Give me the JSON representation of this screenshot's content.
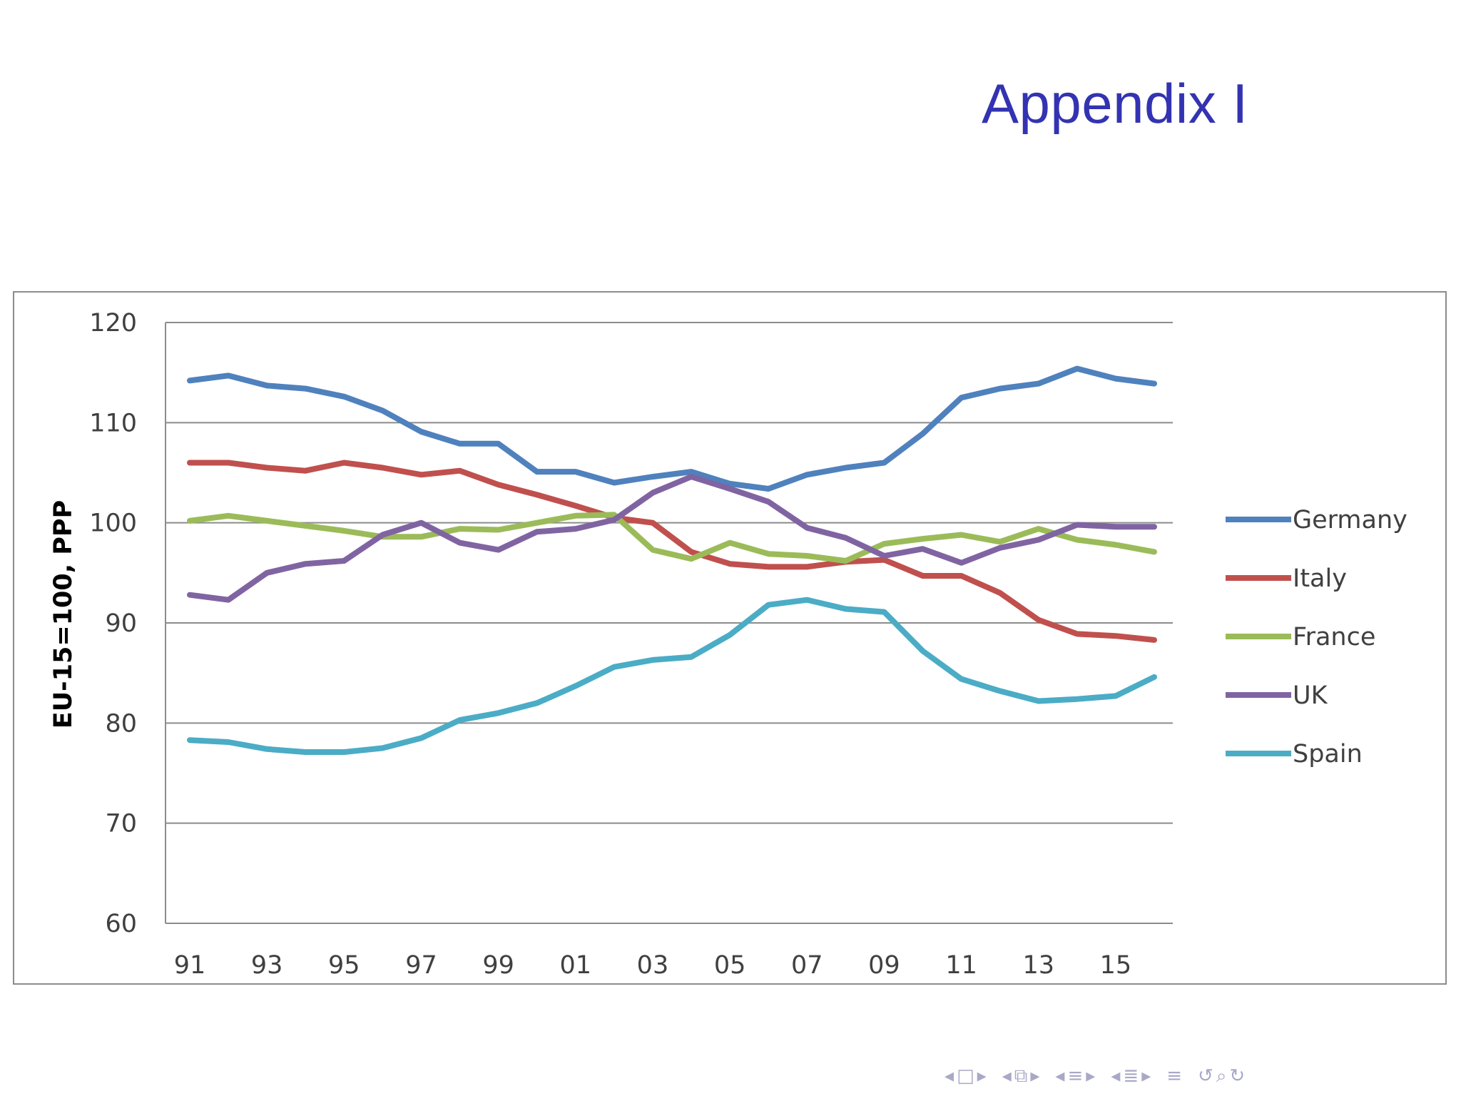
{
  "slide": {
    "title": "Appendix I"
  },
  "colors": {
    "title": "#3333b2",
    "gridline": "#8c8c8c",
    "axis": "#8c8c8c",
    "nav": "#a8a8c8"
  },
  "nav_icons": [
    "arrow-left-icon",
    "frame-icon",
    "arrow-right-icon",
    "arrow-left-icon",
    "subsection-icon",
    "arrow-right-icon",
    "arrow-left-icon",
    "section-icon",
    "arrow-right-icon",
    "arrow-left-icon",
    "document-icon",
    "arrow-right-icon",
    "outline-icon",
    "undo-icon",
    "search-icon",
    "redo-icon"
  ],
  "chart_data": {
    "type": "line",
    "title": "",
    "xlabel": "",
    "ylabel": "EU-15=100, PPP",
    "ylim": [
      60,
      120
    ],
    "yticks": [
      60,
      70,
      80,
      90,
      100,
      110,
      120
    ],
    "x": [
      1991,
      1992,
      1993,
      1994,
      1995,
      1996,
      1997,
      1998,
      1999,
      2000,
      2001,
      2002,
      2003,
      2004,
      2005,
      2006,
      2007,
      2008,
      2009,
      2010,
      2011,
      2012,
      2013,
      2014,
      2015,
      2016
    ],
    "x_tick_labels": [
      "91",
      "93",
      "95",
      "97",
      "99",
      "01",
      "03",
      "05",
      "07",
      "09",
      "11",
      "13",
      "15"
    ],
    "x_tick_years": [
      1991,
      1993,
      1995,
      1997,
      1999,
      2001,
      2003,
      2005,
      2007,
      2009,
      2011,
      2013,
      2015
    ],
    "grid": true,
    "legend_position": "right",
    "series": [
      {
        "name": "Germany",
        "color": "#4f81bd",
        "values": [
          114.2,
          114.7,
          113.7,
          113.4,
          112.6,
          111.2,
          109.1,
          107.9,
          107.9,
          105.1,
          105.1,
          104.0,
          104.6,
          105.1,
          103.9,
          103.4,
          104.8,
          105.5,
          106.0,
          108.9,
          112.5,
          113.4,
          113.9,
          115.4,
          114.4,
          113.9
        ]
      },
      {
        "name": "Italy",
        "color": "#c0504d",
        "values": [
          106.0,
          106.0,
          105.5,
          105.2,
          106.0,
          105.5,
          104.8,
          105.2,
          103.8,
          102.8,
          101.7,
          100.5,
          100.0,
          97.1,
          95.9,
          95.6,
          95.6,
          96.1,
          96.3,
          94.7,
          94.7,
          93.0,
          90.3,
          88.9,
          88.7,
          88.3
        ]
      },
      {
        "name": "France",
        "color": "#9bbb59",
        "values": [
          100.2,
          100.7,
          100.2,
          99.7,
          99.2,
          98.6,
          98.6,
          99.4,
          99.3,
          100.0,
          100.7,
          100.8,
          97.3,
          96.4,
          98.0,
          96.9,
          96.7,
          96.2,
          97.9,
          98.4,
          98.8,
          98.1,
          99.4,
          98.3,
          97.8,
          97.1
        ]
      },
      {
        "name": "UK",
        "color": "#8064a2",
        "values": [
          92.8,
          92.3,
          95.0,
          95.9,
          96.2,
          98.8,
          100.0,
          98.0,
          97.3,
          99.1,
          99.4,
          100.3,
          103.0,
          104.6,
          103.4,
          102.1,
          99.5,
          98.5,
          96.7,
          97.4,
          96.0,
          97.5,
          98.3,
          99.8,
          99.6,
          99.6
        ]
      },
      {
        "name": "Spain",
        "color": "#4bacc6",
        "values": [
          78.3,
          78.1,
          77.4,
          77.1,
          77.1,
          77.5,
          78.5,
          80.3,
          81.0,
          82.0,
          83.7,
          85.6,
          86.3,
          86.6,
          88.8,
          91.8,
          92.3,
          91.4,
          91.1,
          87.2,
          84.4,
          83.2,
          82.2,
          82.4,
          82.7,
          84.6
        ]
      }
    ]
  }
}
